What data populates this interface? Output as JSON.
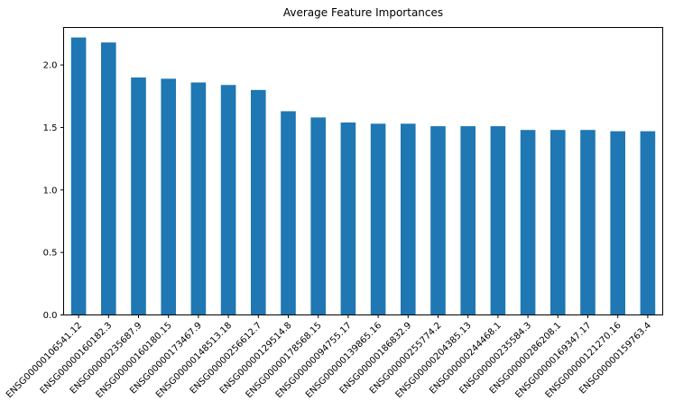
{
  "chart_data": {
    "type": "bar",
    "title": "Average Feature Importances",
    "xlabel": "",
    "ylabel": "",
    "ylim": [
      0,
      2.3
    ],
    "yticks": [
      "0.0",
      "0.5",
      "1.0",
      "1.5",
      "2.0"
    ],
    "grid": false,
    "legend": "none",
    "bar_color": "#1f77b4",
    "categories": [
      "ENSG00000106541.12",
      "ENSG00000160182.3",
      "ENSG00000235687.9",
      "ENSG00000160180.15",
      "ENSG00000173467.9",
      "ENSG00000148513.18",
      "ENSG00000256612.7",
      "ENSG00000129514.8",
      "ENSG00000178568.15",
      "ENSG00000094755.17",
      "ENSG00000139865.16",
      "ENSG00000186832.9",
      "ENSG00000255774.2",
      "ENSG00000204385.13",
      "ENSG00000244468.1",
      "ENSG00000235584.3",
      "ENSG00000286208.1",
      "ENSG00000169347.17",
      "ENSG00000121270.16",
      "ENSG00000159763.4"
    ],
    "values": [
      2.22,
      2.18,
      1.9,
      1.89,
      1.86,
      1.84,
      1.8,
      1.63,
      1.58,
      1.54,
      1.53,
      1.53,
      1.51,
      1.51,
      1.51,
      1.48,
      1.48,
      1.48,
      1.47,
      1.47
    ]
  }
}
